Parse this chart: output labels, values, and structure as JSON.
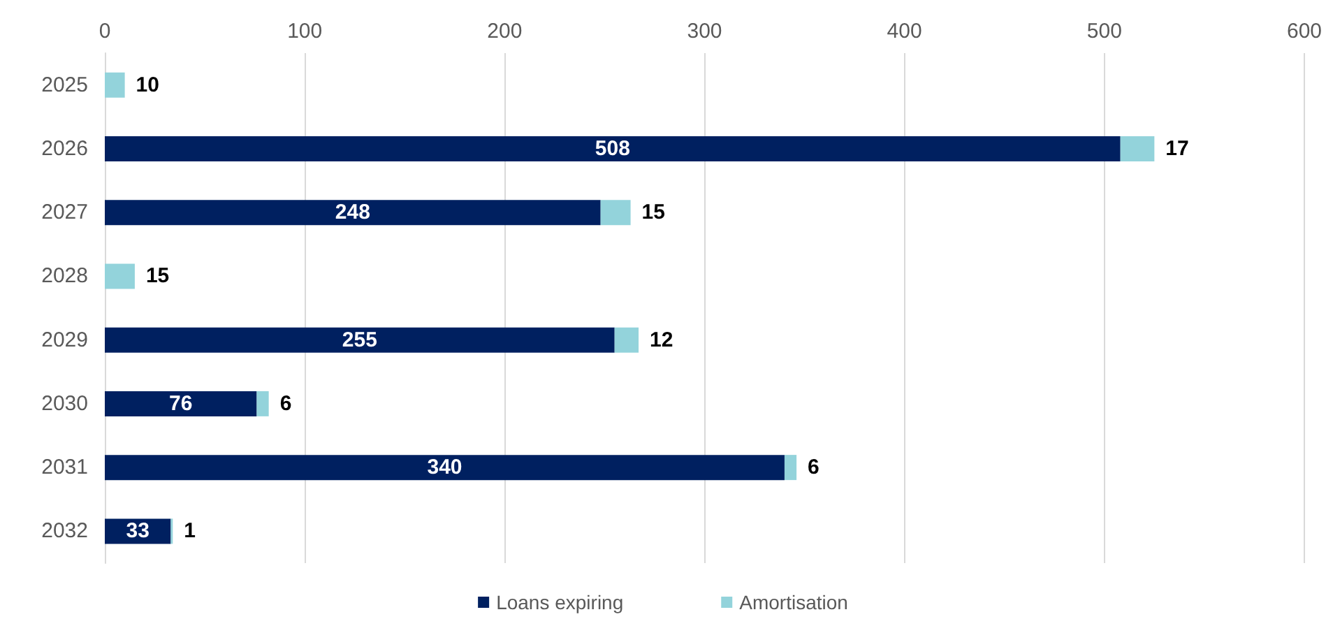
{
  "chart_data": {
    "type": "bar",
    "orientation": "horizontal",
    "stacked": true,
    "categories": [
      "2025",
      "2026",
      "2027",
      "2028",
      "2029",
      "2030",
      "2031",
      "2032"
    ],
    "series": [
      {
        "name": "Loans expiring",
        "color": "#002060",
        "values": [
          null,
          508,
          248,
          null,
          255,
          76,
          340,
          33
        ]
      },
      {
        "name": "Amortisation",
        "color": "#93d3db",
        "values": [
          10,
          17,
          15,
          15,
          12,
          6,
          6,
          1
        ]
      }
    ],
    "xlim": [
      0,
      600
    ],
    "xticks": [
      0,
      100,
      200,
      300,
      400,
      500,
      600
    ],
    "grid": "x",
    "legend": "bottom",
    "data_labels": true
  }
}
